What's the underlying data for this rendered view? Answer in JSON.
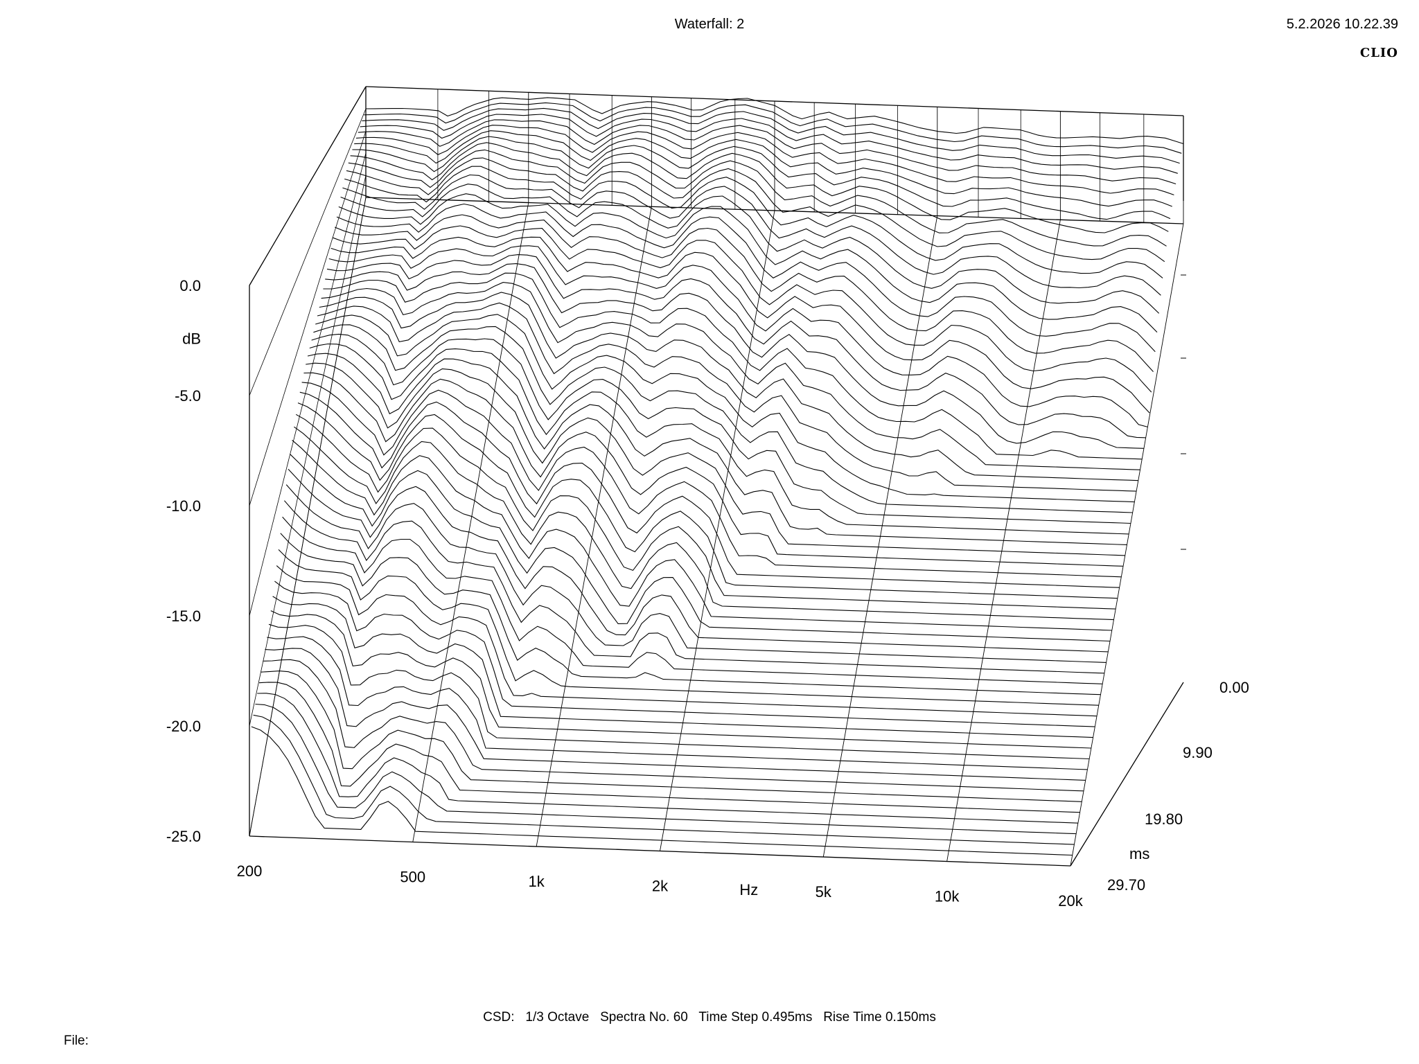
{
  "header": {
    "title": "Waterfall: 2",
    "timestamp": "5.2.2026 10.22.39",
    "brand": "CLIO"
  },
  "footer": {
    "info": "CSD:   1/3 Octave   Spectra No. 60   Time Step 0.495ms   Rise Time 0.150ms",
    "file_label": "File:"
  },
  "chart_data": {
    "type": "waterfall",
    "title": "Waterfall: 2",
    "x_axis": {
      "label": "Hz",
      "scale": "log",
      "range": [
        200,
        20000
      ],
      "ticks": [
        {
          "value": 200,
          "label": "200"
        },
        {
          "value": 500,
          "label": "500"
        },
        {
          "value": 1000,
          "label": "1k"
        },
        {
          "value": 2000,
          "label": "2k"
        },
        {
          "value": 5000,
          "label": "5k"
        },
        {
          "value": 10000,
          "label": "10k"
        },
        {
          "value": 20000,
          "label": "20k"
        }
      ]
    },
    "y_axis": {
      "label": "dB",
      "range": [
        -25,
        0
      ],
      "ticks": [
        {
          "value": 0,
          "label": "0.0"
        },
        {
          "value": -5,
          "label": "-5.0"
        },
        {
          "value": -10,
          "label": "-10.0"
        },
        {
          "value": -15,
          "label": "-15.0"
        },
        {
          "value": -20,
          "label": "-20.0"
        },
        {
          "value": -25,
          "label": "-25.0"
        }
      ]
    },
    "z_axis": {
      "label": "ms",
      "range": [
        0,
        29.7
      ],
      "ticks": [
        {
          "value": 0,
          "label": "0.00"
        },
        {
          "value": 9.9,
          "label": "9.90"
        },
        {
          "value": 19.8,
          "label": "19.80"
        },
        {
          "value": 29.7,
          "label": "29.70"
        }
      ]
    },
    "spectra_count": 60,
    "time_step_ms": 0.495,
    "rise_time_ms": 0.15,
    "smoothing": "1/3 Octave",
    "first_spectrum": [
      {
        "hz": 200,
        "db": -5.0
      },
      {
        "hz": 250,
        "db": -4.6
      },
      {
        "hz": 300,
        "db": -4.8
      },
      {
        "hz": 320,
        "db": -6.2
      },
      {
        "hz": 360,
        "db": -3.5
      },
      {
        "hz": 420,
        "db": -1.4
      },
      {
        "hz": 500,
        "db": -1.6
      },
      {
        "hz": 560,
        "db": -1.0
      },
      {
        "hz": 650,
        "db": -1.3
      },
      {
        "hz": 750,
        "db": -4.4
      },
      {
        "hz": 850,
        "db": -2.0
      },
      {
        "hz": 1000,
        "db": -1.0
      },
      {
        "hz": 1150,
        "db": -1.8
      },
      {
        "hz": 1300,
        "db": -3.0
      },
      {
        "hz": 1500,
        "db": -0.2
      },
      {
        "hz": 1700,
        "db": 0.5
      },
      {
        "hz": 2000,
        "db": -1.0
      },
      {
        "hz": 2300,
        "db": -4.0
      },
      {
        "hz": 2700,
        "db": -2.0
      },
      {
        "hz": 3000,
        "db": -3.5
      },
      {
        "hz": 3500,
        "db": -2.6
      },
      {
        "hz": 4000,
        "db": -3.7
      },
      {
        "hz": 4500,
        "db": -4.9
      },
      {
        "hz": 5000,
        "db": -5.6
      },
      {
        "hz": 5700,
        "db": -6.0
      },
      {
        "hz": 6500,
        "db": -4.3
      },
      {
        "hz": 8000,
        "db": -4.6
      },
      {
        "hz": 9000,
        "db": -5.9
      },
      {
        "hz": 10000,
        "db": -6.2
      },
      {
        "hz": 12000,
        "db": -5.6
      },
      {
        "hz": 14000,
        "db": -5.8
      },
      {
        "hz": 16000,
        "db": -5.0
      },
      {
        "hz": 18000,
        "db": -5.3
      },
      {
        "hz": 20000,
        "db": -6.5
      }
    ]
  }
}
